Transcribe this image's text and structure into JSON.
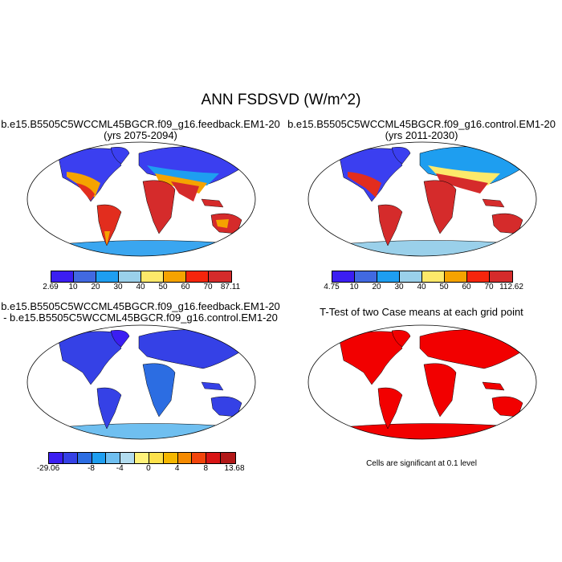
{
  "title": "ANN FSDSVD (W/m^2)",
  "panels": {
    "p1": {
      "line1": "b.e15.B5505C5WCCML45BGCR.f09_g16.feedback.EM1-20",
      "line2": "(yrs 2075-2094)"
    },
    "p2": {
      "line1": "b.e15.B5505C5WCCML45BGCR.f09_g16.control.EM1-20",
      "line2": "(yrs 2011-2030)"
    },
    "p3": {
      "line1": "b.e15.B5505C5WCCML45BGCR.f09_g16.feedback.EM1-20",
      "line2": "- b.e15.B5505C5WCCML45BGCR.f09_g16.control.EM1-20"
    },
    "p4": {
      "line1": "T-Test of two Case means at each grid point",
      "note": "Cells are significant at 0.1 level"
    }
  },
  "colorbars": {
    "cb1": {
      "colors": [
        "#3b1ef2",
        "#4169e1",
        "#1e9ef0",
        "#9ad0ea",
        "#fde96a",
        "#f5a300",
        "#f5250c",
        "#d52b2b"
      ],
      "labels": [
        "2.69",
        "10",
        "20",
        "30",
        "40",
        "50",
        "60",
        "70",
        "87.11"
      ]
    },
    "cb2": {
      "colors": [
        "#3b1ef2",
        "#4169e1",
        "#1e9ef0",
        "#9ad0ea",
        "#fde96a",
        "#f5a300",
        "#f5250c",
        "#d52b2b"
      ],
      "labels": [
        "4.75",
        "10",
        "20",
        "30",
        "40",
        "50",
        "60",
        "70",
        "112.62"
      ]
    },
    "cb3": {
      "colors": [
        "#3b1ef2",
        "#3541e6",
        "#2c6de2",
        "#1e9ef0",
        "#6fbff0",
        "#b2dcef",
        "#fff27a",
        "#fde14b",
        "#f5b700",
        "#f58a00",
        "#f2450c",
        "#d81515",
        "#b21818"
      ],
      "labels": [
        "-29.06",
        "-8",
        "-4",
        "0",
        "4",
        "8",
        "13.68"
      ]
    }
  }
}
